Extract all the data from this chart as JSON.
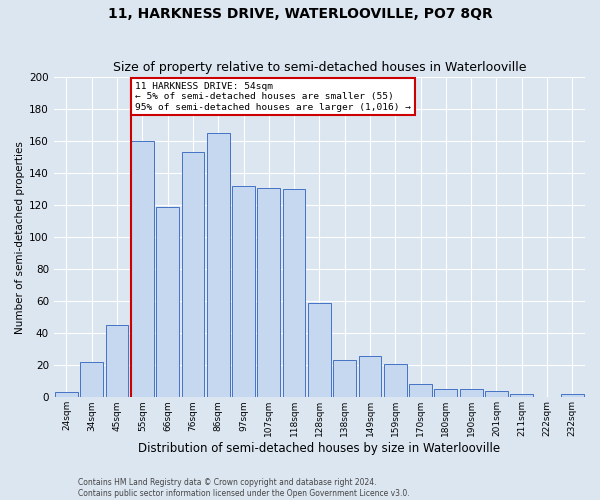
{
  "title": "11, HARKNESS DRIVE, WATERLOOVILLE, PO7 8QR",
  "subtitle": "Size of property relative to semi-detached houses in Waterlooville",
  "xlabel": "Distribution of semi-detached houses by size in Waterlooville",
  "ylabel": "Number of semi-detached properties",
  "categories": [
    "24sqm",
    "34sqm",
    "45sqm",
    "55sqm",
    "66sqm",
    "76sqm",
    "86sqm",
    "97sqm",
    "107sqm",
    "118sqm",
    "128sqm",
    "138sqm",
    "149sqm",
    "159sqm",
    "170sqm",
    "180sqm",
    "190sqm",
    "201sqm",
    "211sqm",
    "222sqm",
    "232sqm"
  ],
  "values": [
    3,
    22,
    45,
    160,
    119,
    153,
    165,
    132,
    131,
    130,
    59,
    23,
    26,
    21,
    8,
    5,
    5,
    4,
    2,
    0,
    2
  ],
  "bar_color": "#c5d8f0",
  "bar_edge_color": "#4472c4",
  "annotation_box_text": "11 HARKNESS DRIVE: 54sqm\n← 5% of semi-detached houses are smaller (55)\n95% of semi-detached houses are larger (1,016) →",
  "annotation_box_color": "#ffffff",
  "annotation_box_edge_color": "#cc0000",
  "background_color": "#dce6f1",
  "grid_color": "#ffffff",
  "footer_line1": "Contains HM Land Registry data © Crown copyright and database right 2024.",
  "footer_line2": "Contains public sector information licensed under the Open Government Licence v3.0.",
  "ylim": [
    0,
    200
  ],
  "highlight_bar_index": 3,
  "title_fontsize": 10,
  "subtitle_fontsize": 9,
  "xlabel_fontsize": 8.5,
  "ylabel_fontsize": 7.5
}
